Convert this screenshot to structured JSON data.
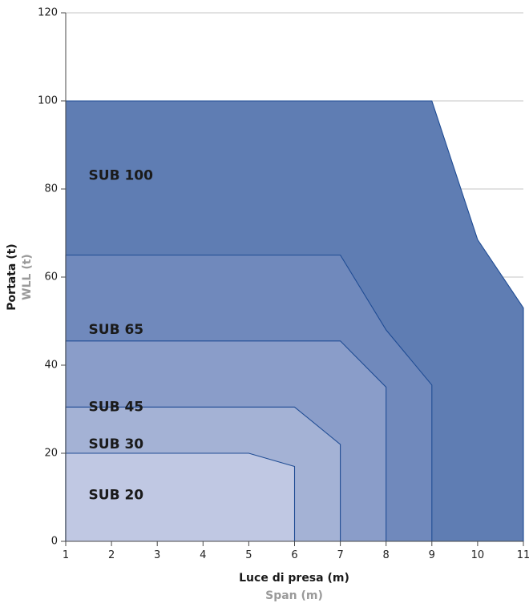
{
  "chart_data": {
    "type": "area",
    "xlabel": "Luce di presa (m)",
    "xlabel_secondary": "Span (m)",
    "ylabel": "Portata (t)",
    "ylabel_secondary": "WLL (t)",
    "xlim": [
      1,
      11
    ],
    "ylim": [
      0,
      120
    ],
    "xticks": [
      1,
      2,
      3,
      4,
      5,
      6,
      7,
      8,
      9,
      10,
      11
    ],
    "yticks": [
      0,
      20,
      40,
      60,
      80,
      100,
      120
    ],
    "grid": "horizontal",
    "series": [
      {
        "name": "SUB 100",
        "color": "#5f7db3",
        "label_at": [
          1.5,
          83
        ],
        "points": [
          [
            1,
            100
          ],
          [
            9,
            100
          ],
          [
            10,
            68.5
          ],
          [
            11,
            53
          ],
          [
            11,
            0
          ]
        ]
      },
      {
        "name": "SUB 65",
        "color": "#7089bc",
        "label_at": [
          1.5,
          48
        ],
        "points": [
          [
            1,
            65
          ],
          [
            7,
            65
          ],
          [
            8,
            48
          ],
          [
            9,
            35.5
          ],
          [
            9,
            0
          ]
        ]
      },
      {
        "name": "SUB 45",
        "color": "#8a9dc9",
        "label_at": [
          1.5,
          30.5
        ],
        "points": [
          [
            1,
            45.5
          ],
          [
            7,
            45.5
          ],
          [
            8,
            35
          ],
          [
            8,
            0
          ]
        ]
      },
      {
        "name": "SUB 30",
        "color": "#a4b2d5",
        "label_at": [
          1.5,
          22
        ],
        "points": [
          [
            1,
            30.5
          ],
          [
            6,
            30.5
          ],
          [
            7,
            22
          ],
          [
            7,
            0
          ]
        ]
      },
      {
        "name": "SUB 20",
        "color": "#c0c8e3",
        "label_at": [
          1.5,
          10.5
        ],
        "points": [
          [
            1,
            20
          ],
          [
            5,
            20
          ],
          [
            6,
            17
          ],
          [
            6,
            0
          ]
        ]
      }
    ]
  }
}
